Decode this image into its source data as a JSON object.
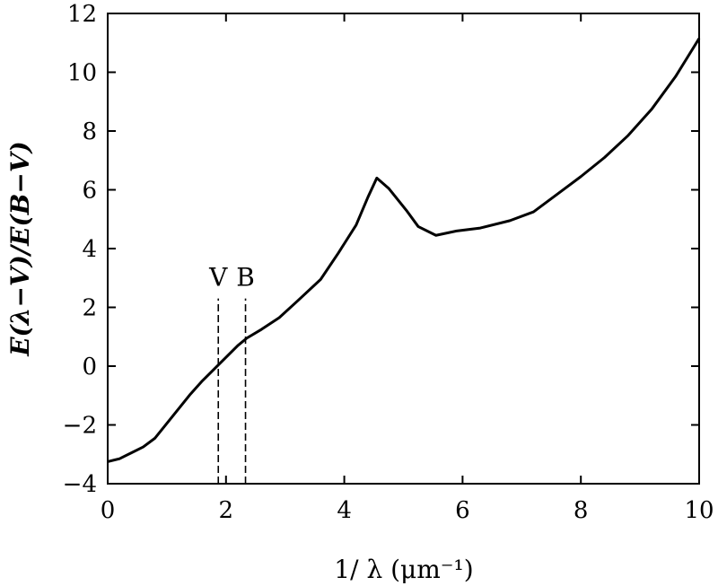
{
  "chart_data": {
    "type": "line",
    "xlabel": "1/ λ (μm⁻¹)",
    "ylabel": "E(λ−V)/E(B−V)",
    "xlim": [
      0,
      10
    ],
    "ylim": [
      -4,
      12
    ],
    "xticks": [
      0,
      2,
      4,
      6,
      8,
      10
    ],
    "yticks": [
      -4,
      -2,
      0,
      2,
      4,
      6,
      8,
      10,
      12
    ],
    "xtick_labels": [
      "0",
      "2",
      "4",
      "6",
      "8",
      "10"
    ],
    "ytick_labels": [
      "−4",
      "−2",
      "0",
      "2",
      "4",
      "6",
      "8",
      "10",
      "12"
    ],
    "grid": false,
    "color": "#000000",
    "series": [
      {
        "x": [
          0.0,
          0.2,
          0.4,
          0.6,
          0.8,
          1.0,
          1.2,
          1.4,
          1.6,
          1.8,
          2.0,
          2.2,
          2.35,
          2.6,
          2.9,
          3.2,
          3.6,
          3.9,
          4.2,
          4.4,
          4.55,
          4.75,
          5.05,
          5.25,
          5.55,
          5.9,
          6.3,
          6.8,
          7.2,
          7.6,
          8.0,
          8.4,
          8.8,
          9.2,
          9.6,
          10.0
        ],
        "y": [
          -3.25,
          -3.15,
          -2.95,
          -2.75,
          -2.45,
          -1.95,
          -1.45,
          -0.95,
          -0.5,
          -0.1,
          0.3,
          0.7,
          0.95,
          1.25,
          1.65,
          2.2,
          2.95,
          3.85,
          4.8,
          5.75,
          6.4,
          6.05,
          5.3,
          4.75,
          4.45,
          4.6,
          4.7,
          4.95,
          5.25,
          5.85,
          6.45,
          7.1,
          7.85,
          8.75,
          9.85,
          11.15
        ]
      }
    ],
    "annotations": [
      {
        "text": "V",
        "x": 1.87,
        "line_y": [
          -4,
          2.3
        ]
      },
      {
        "text": "B",
        "x": 2.33,
        "line_y": [
          -4,
          2.3
        ]
      }
    ]
  }
}
